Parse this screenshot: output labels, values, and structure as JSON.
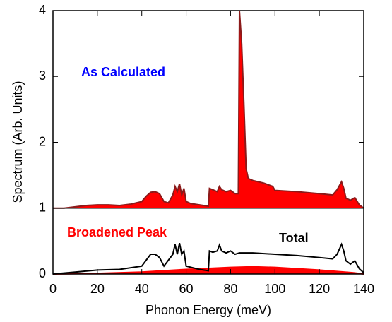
{
  "chart_data": {
    "type": "line",
    "xlabel": "Phonon Energy (meV)",
    "ylabel": "Spectrum (Arb. Units)",
    "xlim": [
      0,
      140
    ],
    "ylim": [
      0,
      4
    ],
    "xticks": [
      0,
      20,
      40,
      60,
      80,
      100,
      120,
      140
    ],
    "yticks": [
      0,
      1,
      2,
      3,
      4
    ],
    "divider": 1,
    "series": [
      {
        "name": "As Calculated",
        "color": "#ff0000",
        "line_color": "#8b1a1a",
        "label_color": "#0000ff",
        "fill": true,
        "x": [
          0,
          5,
          10,
          15,
          20,
          25,
          30,
          35,
          40,
          42,
          44,
          46,
          48,
          50,
          52,
          54,
          55,
          56,
          57,
          58,
          59,
          60,
          62,
          66,
          70,
          70.5,
          72,
          74,
          75,
          76,
          78,
          80,
          82,
          83.5,
          84,
          85,
          86,
          87,
          88,
          90,
          95,
          99,
          100,
          110,
          120,
          126,
          128,
          130,
          131,
          132,
          134,
          136,
          138,
          140
        ],
        "values": [
          1.0,
          1.0,
          1.02,
          1.04,
          1.05,
          1.05,
          1.04,
          1.06,
          1.1,
          1.18,
          1.24,
          1.25,
          1.22,
          1.1,
          1.08,
          1.2,
          1.33,
          1.25,
          1.37,
          1.2,
          1.3,
          1.1,
          1.07,
          1.05,
          1.03,
          1.3,
          1.28,
          1.25,
          1.33,
          1.28,
          1.25,
          1.27,
          1.22,
          1.22,
          4.0,
          3.5,
          2.6,
          1.6,
          1.45,
          1.42,
          1.38,
          1.33,
          1.27,
          1.25,
          1.22,
          1.2,
          1.28,
          1.4,
          1.3,
          1.15,
          1.12,
          1.16,
          1.05,
          1.0
        ]
      },
      {
        "name": "Broadened Peak",
        "color": "#ff0000",
        "line_color": "#ff0000",
        "label_color": "#ff0000",
        "fill": true,
        "x": [
          0,
          20,
          40,
          60,
          80,
          90,
          100,
          120,
          135,
          140
        ],
        "values": [
          0,
          0.01,
          0.03,
          0.07,
          0.1,
          0.11,
          0.1,
          0.06,
          0.02,
          0
        ]
      },
      {
        "name": "Total",
        "color": "#000000",
        "line_color": "#000000",
        "label_color": "#000000",
        "fill": false,
        "x": [
          0,
          10,
          20,
          30,
          40,
          44,
          46,
          48,
          50,
          54,
          55,
          56,
          57,
          58,
          59,
          60,
          66,
          70,
          70.5,
          72,
          74,
          75,
          76,
          78,
          80,
          82,
          84,
          90,
          100,
          110,
          120,
          126,
          128,
          130,
          131,
          132,
          134,
          136,
          138,
          140
        ],
        "values": [
          0,
          0.03,
          0.06,
          0.07,
          0.12,
          0.3,
          0.3,
          0.25,
          0.12,
          0.3,
          0.45,
          0.3,
          0.47,
          0.3,
          0.35,
          0.12,
          0.07,
          0.05,
          0.35,
          0.33,
          0.35,
          0.44,
          0.35,
          0.32,
          0.35,
          0.3,
          0.32,
          0.32,
          0.3,
          0.28,
          0.25,
          0.23,
          0.3,
          0.45,
          0.35,
          0.2,
          0.15,
          0.2,
          0.08,
          0.02
        ]
      }
    ]
  }
}
